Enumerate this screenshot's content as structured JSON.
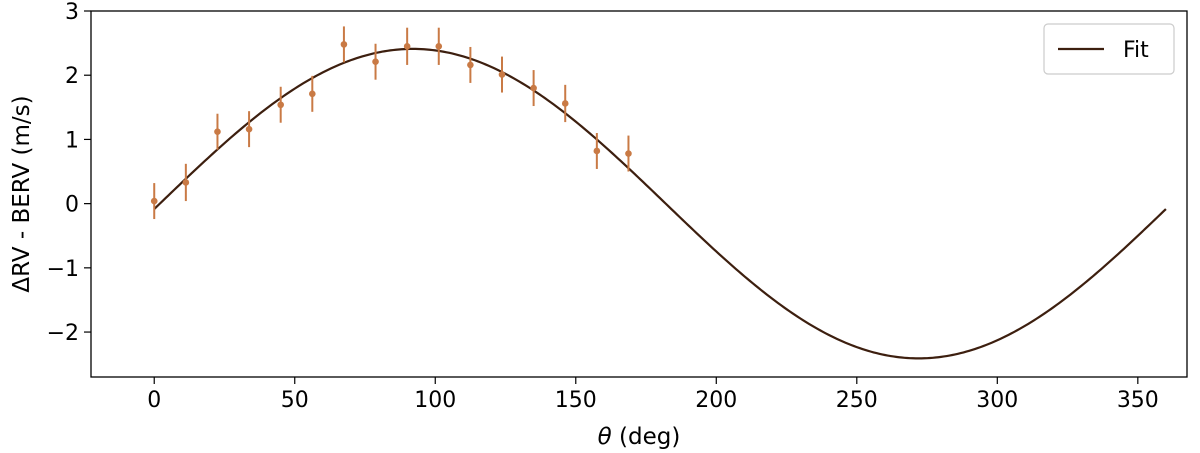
{
  "chart_data": {
    "type": "scatter",
    "xlabel_symbol": "θ",
    "xlabel_unit": " (deg)",
    "ylabel": "ΔRV - BERV (m/s)",
    "xlim": [
      -22.5,
      367.5
    ],
    "ylim": [
      -2.7,
      3.0
    ],
    "x_ticks": [
      0,
      50,
      100,
      150,
      200,
      250,
      300,
      350
    ],
    "x_tick_labels": [
      "0",
      "50",
      "100",
      "150",
      "200",
      "250",
      "300",
      "350"
    ],
    "y_ticks": [
      -2,
      -1,
      0,
      1,
      2,
      3
    ],
    "y_tick_labels": [
      "−2",
      "−1",
      "0",
      "1",
      "2",
      "3"
    ],
    "legend": {
      "position": "top-right",
      "entries": [
        "Fit"
      ]
    },
    "fit": {
      "name": "Fit",
      "color": "#3d1f0f",
      "model": "amplitude*sin(theta - phase_deg) + offset",
      "amplitude": 2.41,
      "phase_deg": 2.0,
      "offset": 0.0,
      "x_range": [
        0,
        360
      ]
    },
    "points": {
      "color": "#c97a45",
      "x": [
        0,
        11.25,
        22.5,
        33.75,
        45,
        56.25,
        67.5,
        78.75,
        90,
        101.25,
        112.5,
        123.75,
        135,
        146.25,
        157.5,
        168.75
      ],
      "y": [
        0.04,
        0.33,
        1.12,
        1.16,
        1.54,
        1.71,
        2.48,
        2.21,
        2.45,
        2.45,
        2.16,
        2.01,
        1.8,
        1.56,
        0.82,
        0.78
      ],
      "yerr": [
        0.28,
        0.29,
        0.28,
        0.28,
        0.28,
        0.28,
        0.28,
        0.28,
        0.29,
        0.29,
        0.28,
        0.28,
        0.28,
        0.29,
        0.28,
        0.28
      ]
    }
  }
}
